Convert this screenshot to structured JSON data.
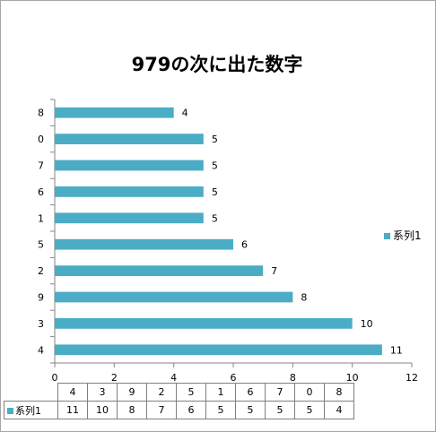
{
  "chart_data": {
    "type": "bar",
    "orientation": "horizontal",
    "title": "979の次に出た数字",
    "categories": [
      "4",
      "3",
      "9",
      "2",
      "5",
      "1",
      "6",
      "7",
      "0",
      "8"
    ],
    "series": [
      {
        "name": "系列1",
        "values": [
          11,
          10,
          8,
          7,
          6,
          5,
          5,
          5,
          5,
          4
        ]
      }
    ],
    "xlim": [
      0,
      12
    ],
    "x_ticks": [
      "0",
      "2",
      "4",
      "6",
      "8",
      "10",
      "12"
    ],
    "grid": false,
    "data_labels": true,
    "legend_position": "right",
    "data_table": true,
    "bar_color": "#4bacc6"
  }
}
